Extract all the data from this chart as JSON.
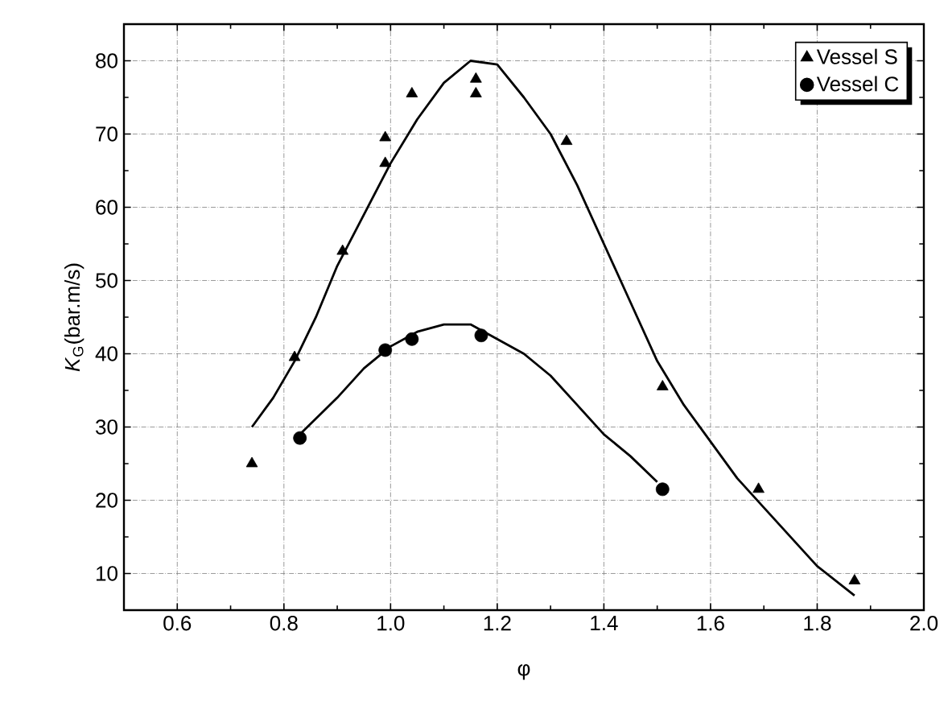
{
  "chart_data": {
    "type": "scatter",
    "xlabel": "φ",
    "ylabel": "*K*$_{G}$(bar.m/s)",
    "xlim": [
      0.5,
      2.0
    ],
    "ylim": [
      5,
      85
    ],
    "xticks": [
      {
        "value": 0.6,
        "label": "0.6"
      },
      {
        "value": 0.8,
        "label": "0.8"
      },
      {
        "value": 1.0,
        "label": "1.0"
      },
      {
        "value": 1.2,
        "label": "1.2"
      },
      {
        "value": 1.4,
        "label": "1.4"
      },
      {
        "value": 1.6,
        "label": "1.6"
      },
      {
        "value": 1.8,
        "label": "1.8"
      },
      {
        "value": 2.0,
        "label": "2.0"
      }
    ],
    "yticks": [
      10,
      20,
      30,
      40,
      50,
      60,
      70,
      80
    ],
    "grid": true,
    "legend": "top right",
    "series": [
      {
        "name": "Vessel S",
        "marker": "triangle",
        "color": "#000000",
        "x": [
          0.74,
          0.82,
          0.91,
          0.99,
          0.99,
          1.04,
          1.16,
          1.16,
          1.33,
          1.51,
          1.69,
          1.87
        ],
        "values": [
          25,
          39.5,
          54,
          69.5,
          66,
          75.5,
          77.5,
          75.5,
          69,
          35.5,
          21.5,
          9
        ]
      },
      {
        "name": "Vessel C",
        "marker": "circle",
        "color": "#000000",
        "x": [
          0.83,
          0.99,
          1.04,
          1.17,
          1.51
        ],
        "values": [
          28.5,
          40.5,
          42,
          42.5,
          21.5
        ]
      },
      {
        "type": "line",
        "color": "#000000",
        "x": [
          0.74,
          0.78,
          0.82,
          0.86,
          0.9,
          0.95,
          1.0,
          1.05,
          1.1,
          1.15,
          1.2,
          1.25,
          1.3,
          1.35,
          1.4,
          1.45,
          1.5,
          1.55,
          1.6,
          1.65,
          1.7,
          1.75,
          1.8,
          1.87
        ],
        "values": [
          30,
          34,
          39,
          45,
          52,
          59,
          66,
          72,
          77,
          80,
          79.5,
          75,
          70,
          63,
          55,
          47,
          39,
          33,
          28,
          23,
          19,
          15,
          11,
          7
        ]
      },
      {
        "type": "line",
        "color": "#000000",
        "x": [
          0.83,
          0.9,
          0.95,
          1.0,
          1.05,
          1.1,
          1.15,
          1.2,
          1.25,
          1.3,
          1.35,
          1.4,
          1.45,
          1.5
        ],
        "values": [
          29,
          34,
          38,
          41,
          43,
          44,
          44,
          42,
          40,
          37,
          33,
          29,
          26,
          22.5
        ]
      }
    ]
  }
}
